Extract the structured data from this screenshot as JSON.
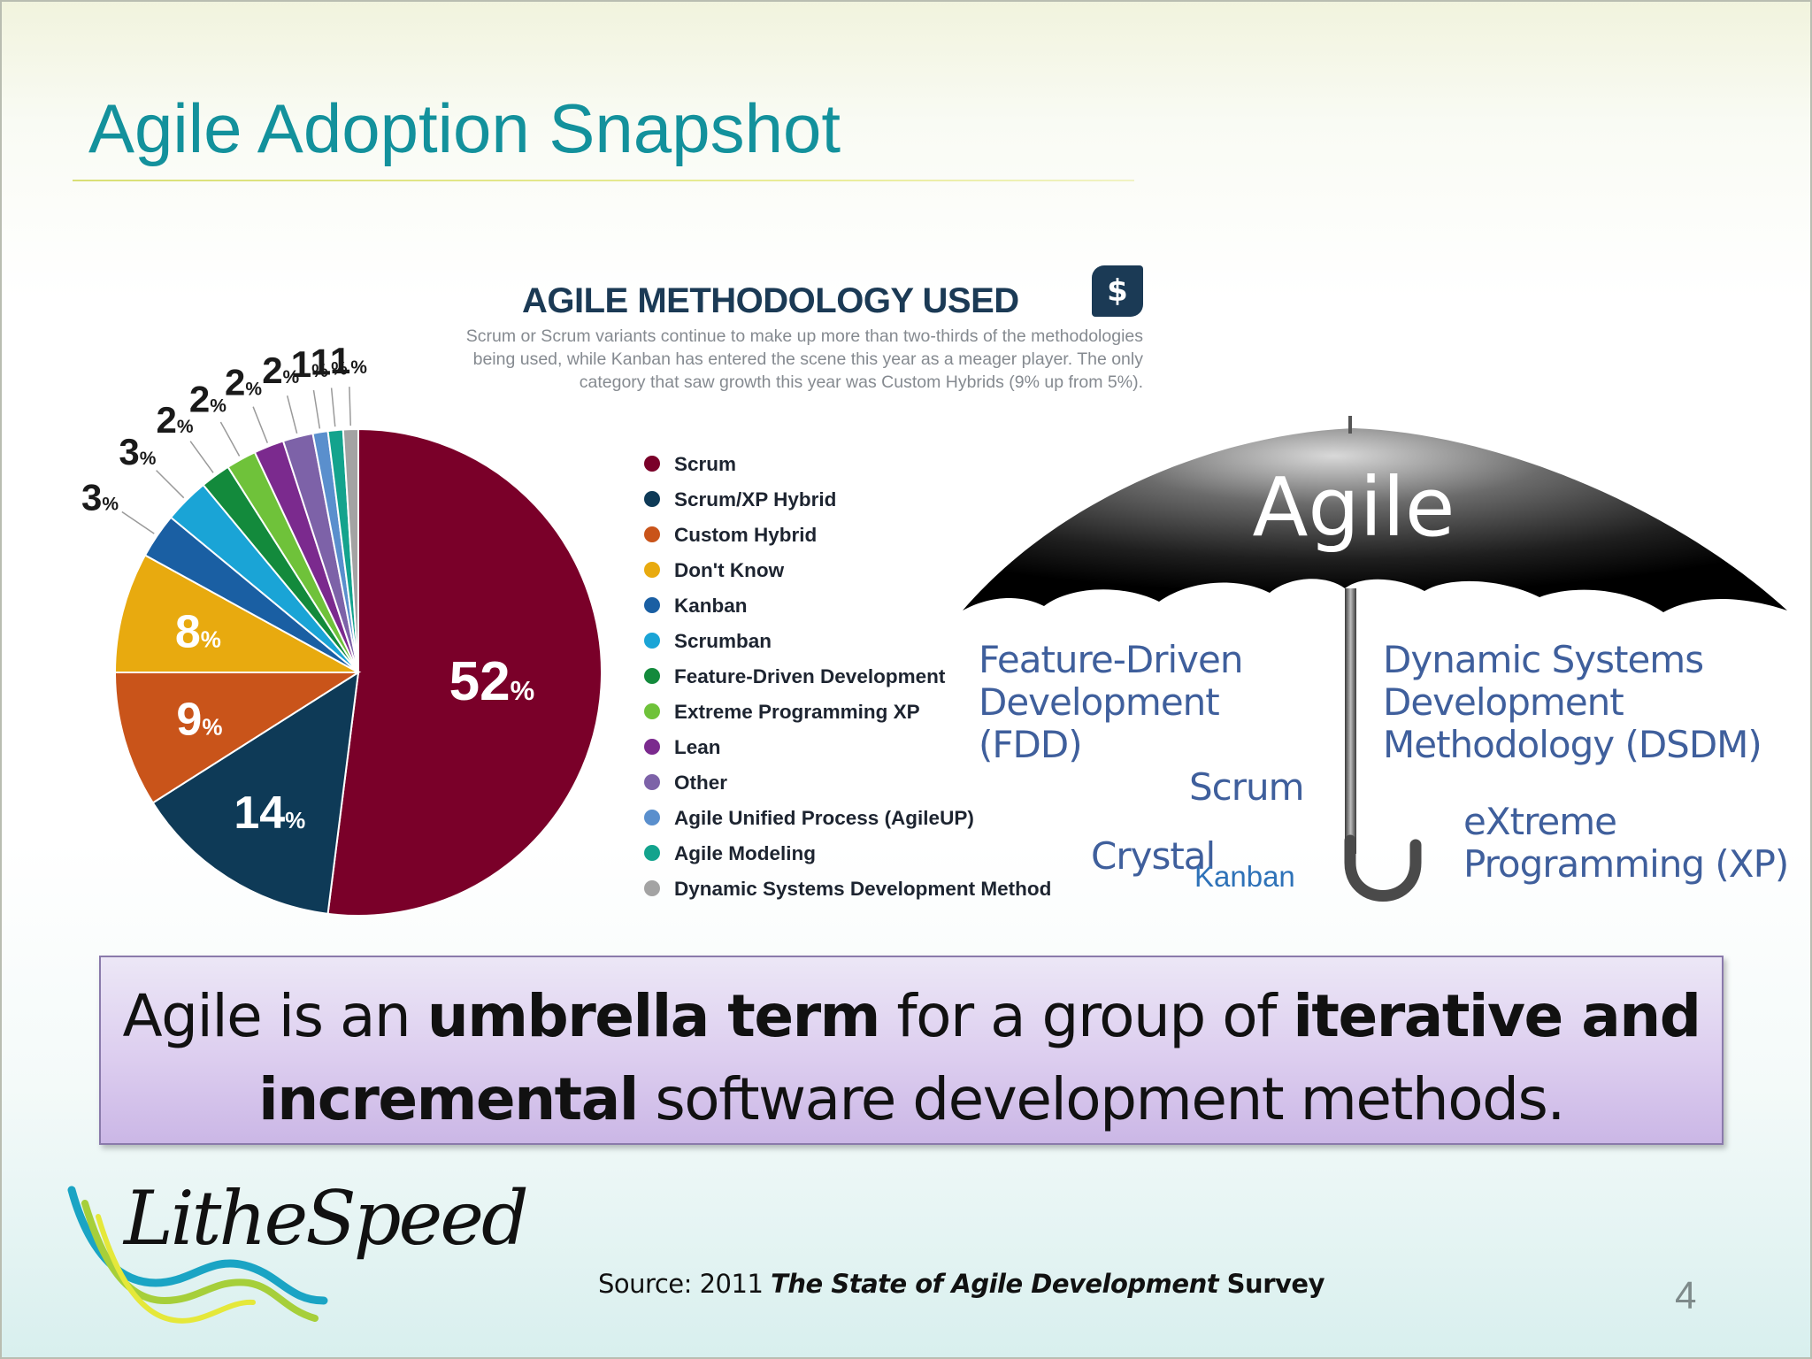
{
  "slide": {
    "title": "Agile Adoption Snapshot",
    "page_number": "4"
  },
  "infographic": {
    "title": "AGILE METHODOLOGY USED",
    "logo_glyph": "$",
    "description": "Scrum or Scrum variants continue to make up more than two-thirds of the methodologies being used, while Kanban has entered the scene this year as a meager player. The only category that saw growth this year was Custom Hybrids (9% up from 5%).",
    "legend": [
      {
        "label": "Scrum",
        "color": "#7a0029"
      },
      {
        "label": "Scrum/XP Hybrid",
        "color": "#0e3a57"
      },
      {
        "label": "Custom Hybrid",
        "color": "#c9541a"
      },
      {
        "label": "Don't Know",
        "color": "#e8aa0f"
      },
      {
        "label": "Kanban",
        "color": "#1a5fa3"
      },
      {
        "label": "Scrumban",
        "color": "#1aa4d6"
      },
      {
        "label": "Feature-Driven Development",
        "color": "#138a3c"
      },
      {
        "label": "Extreme Programming XP",
        "color": "#6fc23a"
      },
      {
        "label": "Lean",
        "color": "#7b2a8e"
      },
      {
        "label": "Other",
        "color": "#7d62a8"
      },
      {
        "label": "Agile Unified Process (AgileUP)",
        "color": "#5a8fcd"
      },
      {
        "label": "Agile Modeling",
        "color": "#13a38d"
      },
      {
        "label": "Dynamic Systems Development Method",
        "color": "#a3a3a3"
      }
    ]
  },
  "chart_data": {
    "type": "pie",
    "categories": [
      "Scrum",
      "Scrum/XP Hybrid",
      "Custom Hybrid",
      "Don't Know",
      "Kanban",
      "Scrumban",
      "Feature-Driven Development",
      "Extreme Programming XP",
      "Lean",
      "Other",
      "Agile Unified Process (AgileUP)",
      "Agile Modeling",
      "Dynamic Systems Development Method"
    ],
    "values": [
      52,
      14,
      9,
      8,
      3,
      3,
      2,
      2,
      2,
      2,
      1,
      1,
      1
    ],
    "labels": [
      "52",
      "14",
      "9",
      "8",
      "3",
      "3",
      "2",
      "2",
      "2",
      "2",
      "1",
      "1",
      "1"
    ],
    "unit": "%",
    "colors": [
      "#7a0029",
      "#0e3a57",
      "#c9541a",
      "#e8aa0f",
      "#1a5fa3",
      "#1aa4d6",
      "#138a3c",
      "#6fc23a",
      "#7b2a8e",
      "#7d62a8",
      "#5a8fcd",
      "#13a38d",
      "#a3a3a3"
    ]
  },
  "umbrella": {
    "label": "Agile",
    "methods": {
      "fdd": "Feature-Driven\nDevelopment (FDD)",
      "dsdm": "Dynamic Systems\nDevelopment\nMethodology (DSDM)",
      "scrum": "Scrum",
      "xp": "eXtreme\nProgramming (XP)",
      "crystal": "Crystal",
      "kanban": "Kanban"
    }
  },
  "callout": {
    "part1": "Agile is an ",
    "bold1": "umbrella term",
    "part2": " for a group of ",
    "bold2": "iterative and incremental",
    "part3": " software development methods."
  },
  "footer": {
    "logo_text": "LitheSpeed",
    "source_prefix": "Source: 2011 ",
    "source_title": "The State of Agile Development",
    "source_suffix": " Survey"
  }
}
